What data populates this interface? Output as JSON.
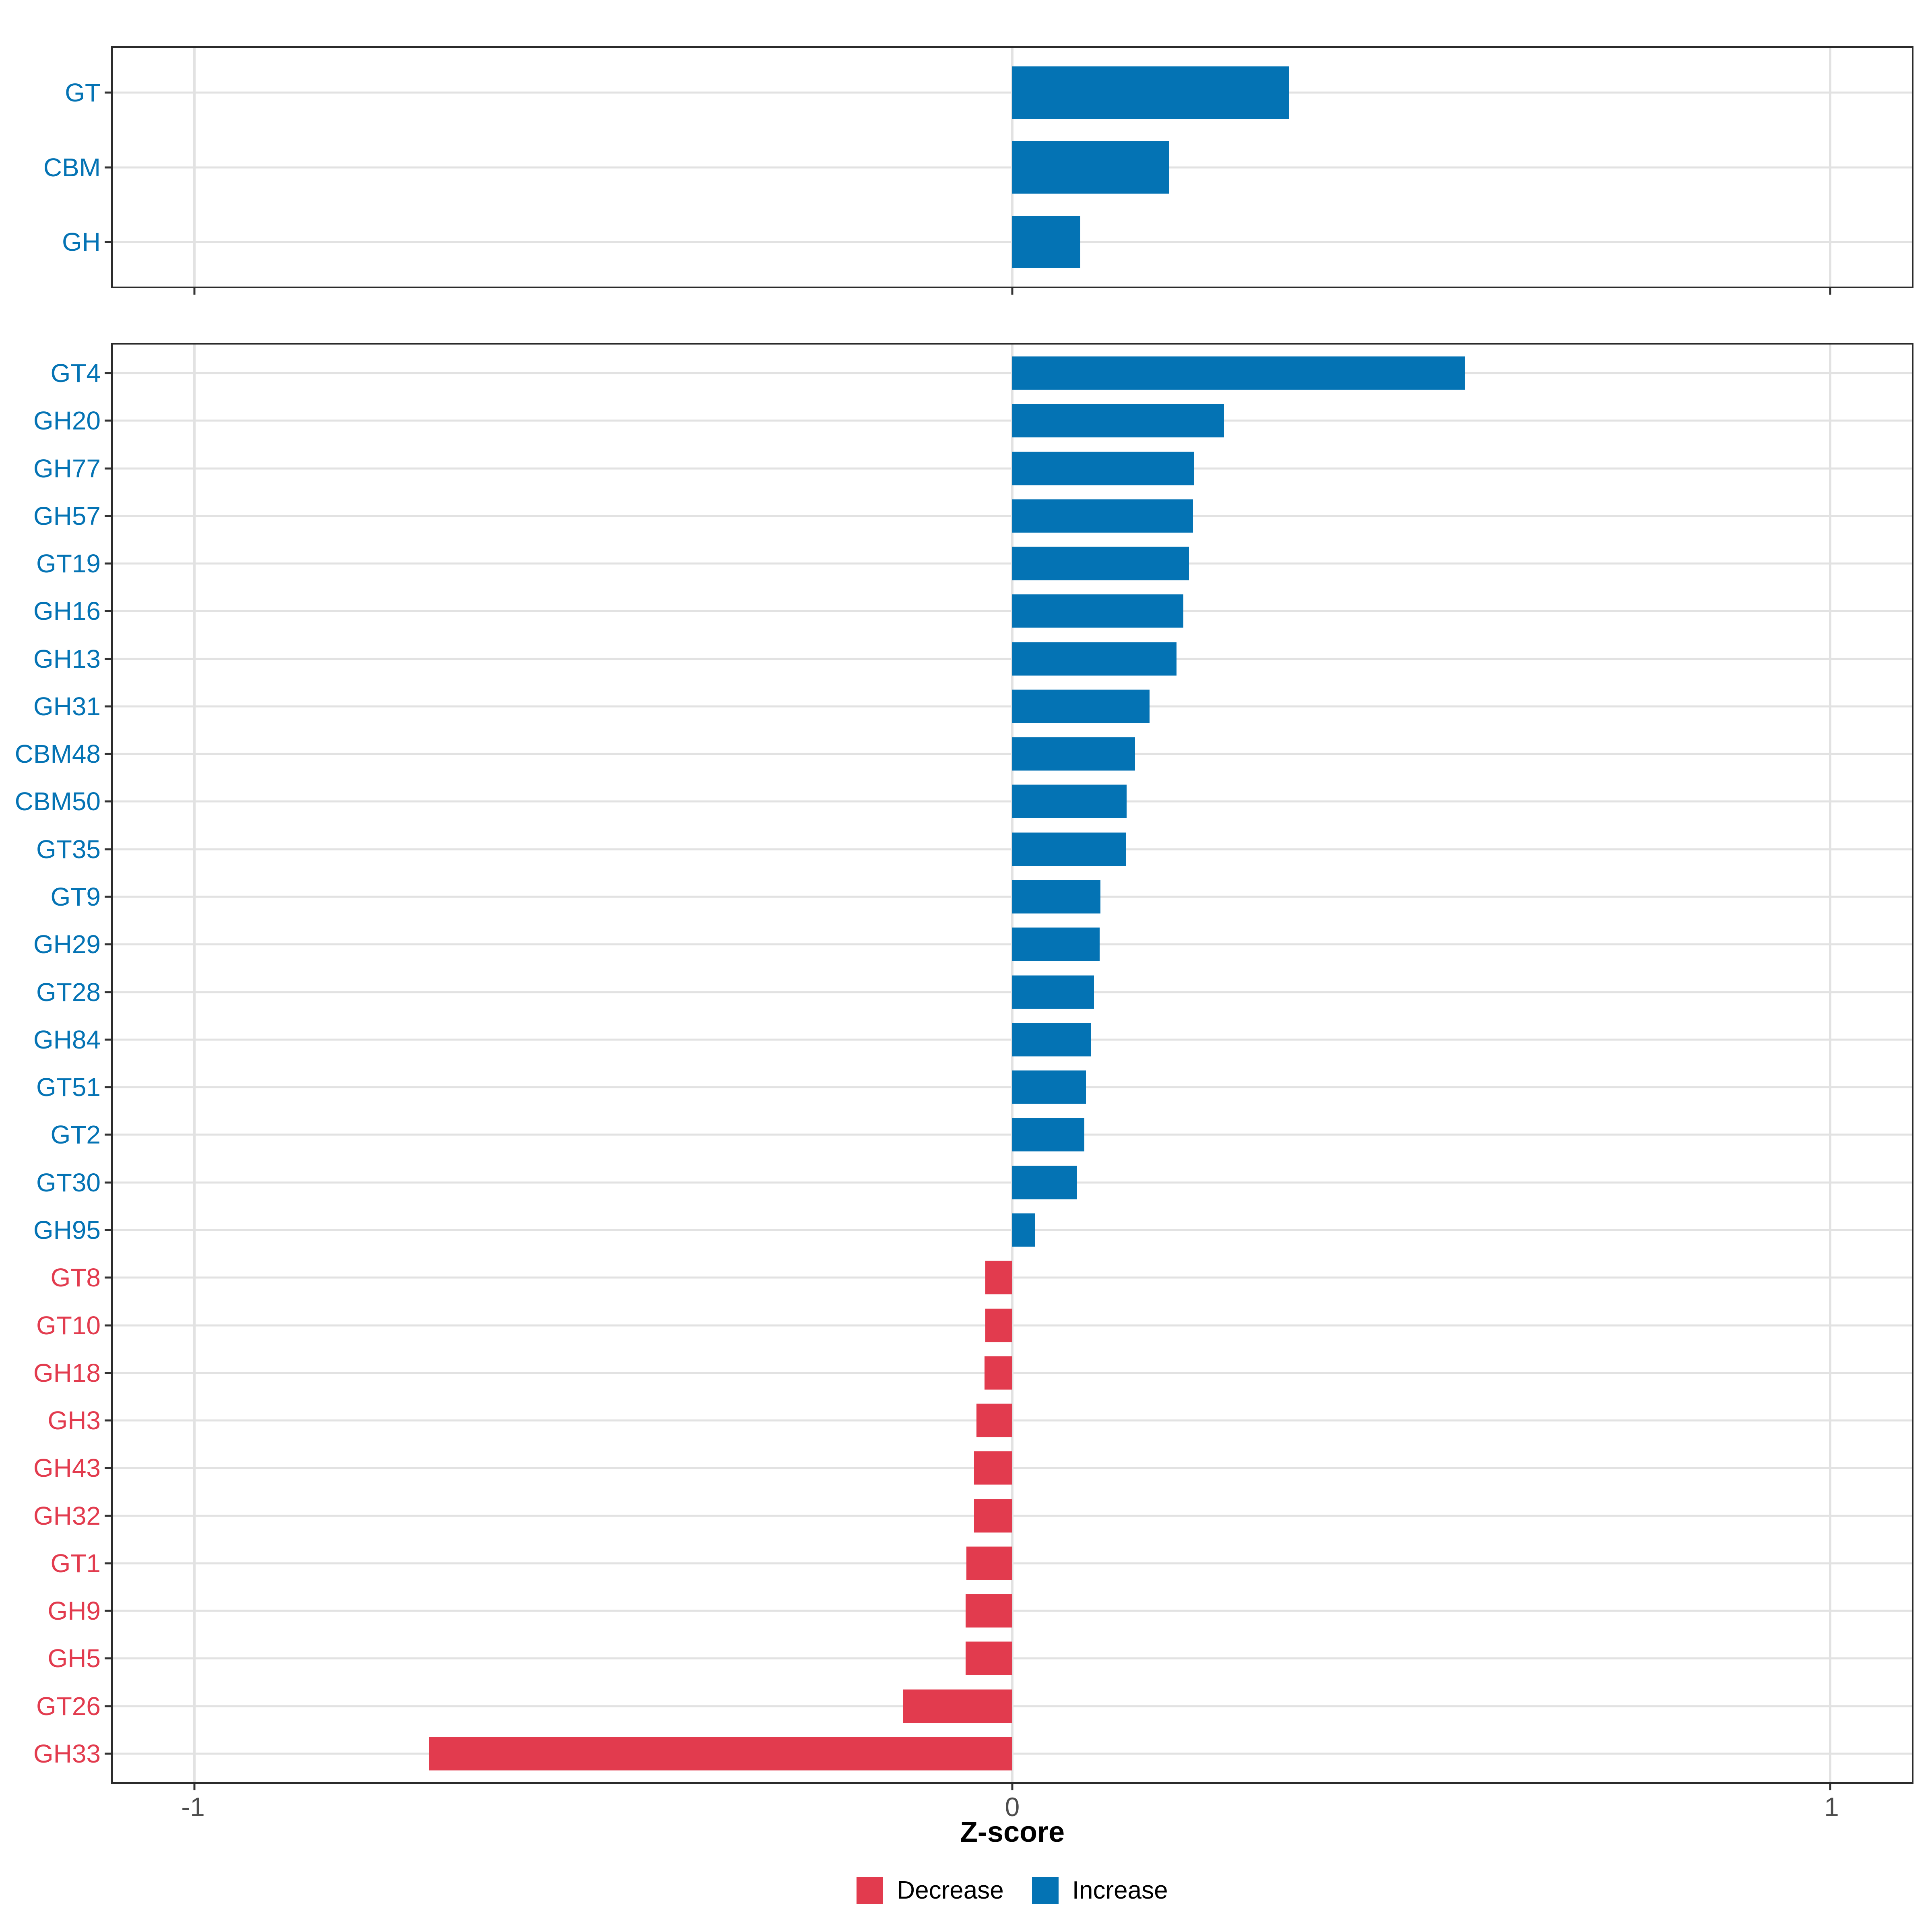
{
  "figure": {
    "xlabel": "Z-score",
    "xlim": [
      -1.1,
      1.1
    ],
    "x_ticks": [
      {
        "value": -1,
        "label": "-1"
      },
      {
        "value": 0,
        "label": "0"
      },
      {
        "value": 1,
        "label": "1"
      }
    ],
    "legend": [
      {
        "label": "Decrease",
        "key": "decrease"
      },
      {
        "label": "Increase",
        "key": "increase"
      }
    ],
    "colors": {
      "increase": "#0473b4",
      "decrease": "#e23b4e",
      "gridline": "#e2e2e2",
      "panel_border": "#2b2b2b",
      "axis_tick": "#333333",
      "tick_label": "#4d4d4d",
      "axis_title": "#000000",
      "background": "#ffffff"
    }
  },
  "chart_data": [
    {
      "type": "bar",
      "orientation": "horizontal",
      "panel": "top",
      "title": "",
      "xlabel": "Z-score",
      "xlim": [
        -1.1,
        1.1
      ],
      "grid": true,
      "categories": [
        "GT",
        "CBM",
        "GH"
      ],
      "values": [
        0.338,
        0.192,
        0.083
      ],
      "directions": [
        "increase",
        "increase",
        "increase"
      ]
    },
    {
      "type": "bar",
      "orientation": "horizontal",
      "panel": "bottom",
      "title": "",
      "xlabel": "Z-score",
      "xlim": [
        -1.1,
        1.1
      ],
      "grid": true,
      "categories": [
        "GT4",
        "GH20",
        "GH77",
        "GH57",
        "GT19",
        "GH16",
        "GH13",
        "GH31",
        "CBM48",
        "CBM50",
        "GT35",
        "GT9",
        "GH29",
        "GT28",
        "GH84",
        "GT51",
        "GT2",
        "GT30",
        "GH95",
        "GT8",
        "GT10",
        "GH18",
        "GH3",
        "GH43",
        "GH32",
        "GT1",
        "GH9",
        "GH5",
        "GT26",
        "GH33"
      ],
      "values": [
        0.553,
        0.259,
        0.222,
        0.221,
        0.216,
        0.209,
        0.201,
        0.168,
        0.15,
        0.14,
        0.139,
        0.108,
        0.107,
        0.1,
        0.096,
        0.09,
        0.088,
        0.079,
        0.028,
        -0.033,
        -0.033,
        -0.034,
        -0.044,
        -0.047,
        -0.047,
        -0.056,
        -0.057,
        -0.057,
        -0.134,
        -0.713
      ],
      "directions": [
        "increase",
        "increase",
        "increase",
        "increase",
        "increase",
        "increase",
        "increase",
        "increase",
        "increase",
        "increase",
        "increase",
        "increase",
        "increase",
        "increase",
        "increase",
        "increase",
        "increase",
        "increase",
        "increase",
        "decrease",
        "decrease",
        "decrease",
        "decrease",
        "decrease",
        "decrease",
        "decrease",
        "decrease",
        "decrease",
        "decrease",
        "decrease"
      ]
    }
  ]
}
